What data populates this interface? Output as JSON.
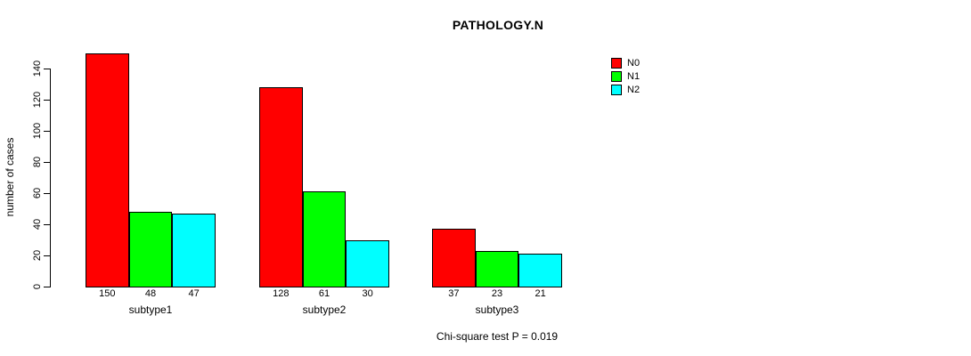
{
  "chart_data": {
    "type": "bar",
    "title": "PATHOLOGY.N",
    "ylabel": "number of cases",
    "xlabel": "",
    "categories": [
      "subtype1",
      "subtype2",
      "subtype3"
    ],
    "series": [
      {
        "name": "N0",
        "color": "#FF0000",
        "values": [
          150,
          128,
          37
        ]
      },
      {
        "name": "N1",
        "color": "#00FF00",
        "values": [
          48,
          61,
          23
        ]
      },
      {
        "name": "N2",
        "color": "#00FFFF",
        "values": [
          47,
          30,
          21
        ]
      }
    ],
    "value_labels": [
      [
        "150",
        "48",
        "47"
      ],
      [
        "128",
        "61",
        "30"
      ],
      [
        "37",
        "23",
        "21"
      ]
    ],
    "ylim": [
      0,
      140
    ],
    "ytick_step": 20,
    "ytick_labels": [
      "0",
      "20",
      "40",
      "60",
      "80",
      "100",
      "120",
      "140"
    ],
    "grid": "off",
    "legend_position": "top-right",
    "annotation": "Chi-square test P = 0.019"
  }
}
